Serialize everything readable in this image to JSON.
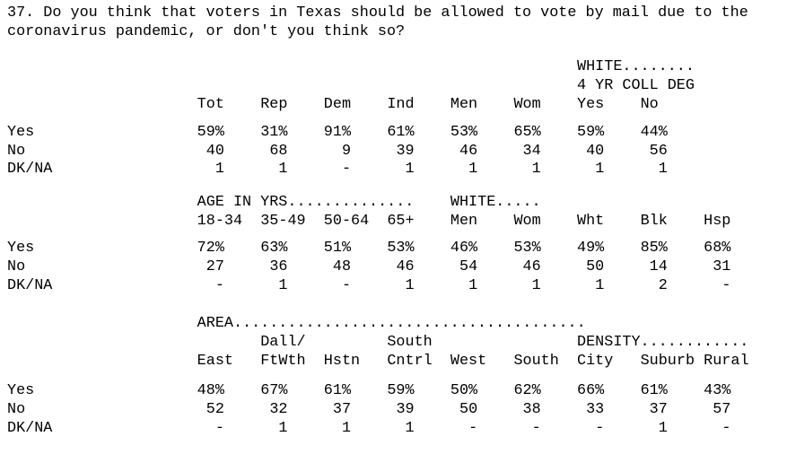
{
  "page": {
    "question_line1": "37. Do you think that voters in Texas should be allowed to vote by mail due to the",
    "question_line2": "coronavirus pandemic, or don't you think so?"
  },
  "tables": [
    {
      "name": "party-gender-white-college",
      "banner_lines": [
        [
          {
            "c": 6,
            "t": "WHITE........"
          }
        ],
        [
          {
            "c": 6,
            "t": "4 YR COLL DEG"
          }
        ]
      ],
      "columns": [
        "Tot",
        "Rep",
        "Dem",
        "Ind",
        "Men",
        "Wom",
        "Yes",
        "No"
      ],
      "rows": [
        {
          "label": "Yes",
          "values": [
            "59%",
            "31%",
            "91%",
            "61%",
            "53%",
            "65%",
            "59%",
            "44%"
          ]
        },
        {
          "label": "No",
          "values": [
            "40",
            "68",
            "9",
            "39",
            "46",
            "34",
            "40",
            "56"
          ]
        },
        {
          "label": "DK/NA",
          "values": [
            "1",
            "1",
            "-",
            "1",
            "1",
            "1",
            "1",
            "1"
          ]
        }
      ]
    },
    {
      "name": "age-white-gender-race",
      "banner_lines": [
        [
          {
            "c": 0,
            "t": "AGE IN YRS.............."
          },
          {
            "c": 4,
            "t": "WHITE....."
          }
        ]
      ],
      "columns": [
        "18-34",
        "35-49",
        "50-64",
        "65+",
        "Men",
        "Wom",
        "Wht",
        "Blk",
        "Hsp"
      ],
      "rows": [
        {
          "label": "Yes",
          "values": [
            "72%",
            "63%",
            "51%",
            "53%",
            "46%",
            "53%",
            "49%",
            "85%",
            "68%"
          ]
        },
        {
          "label": "No",
          "values": [
            "27",
            "36",
            "48",
            "46",
            "54",
            "46",
            "50",
            "14",
            "31"
          ]
        },
        {
          "label": "DK/NA",
          "values": [
            "-",
            "1",
            "-",
            "1",
            "1",
            "1",
            "1",
            "2",
            "-"
          ]
        }
      ]
    },
    {
      "name": "area-density",
      "banner_lines": [
        [
          {
            "c": 0,
            "t": "AREA......................................."
          }
        ],
        [
          {
            "c": 1,
            "t": "Dall/"
          },
          {
            "c": 3,
            "t": "South"
          },
          {
            "c": 6,
            "t": "DENSITY............"
          }
        ]
      ],
      "columns": [
        "East",
        "FtWth",
        "Hstn",
        "Cntrl",
        "West",
        "South",
        "City",
        "Suburb",
        "Rural"
      ],
      "rows": [
        {
          "label": "Yes",
          "values": [
            "48%",
            "67%",
            "61%",
            "59%",
            "50%",
            "62%",
            "66%",
            "61%",
            "43%"
          ]
        },
        {
          "label": "No",
          "values": [
            "52",
            "32",
            "37",
            "39",
            "50",
            "38",
            "33",
            "37",
            "57"
          ]
        },
        {
          "label": "DK/NA",
          "values": [
            "-",
            "1",
            "1",
            "1",
            "-",
            "-",
            "-",
            "1",
            "-"
          ]
        }
      ]
    }
  ]
}
